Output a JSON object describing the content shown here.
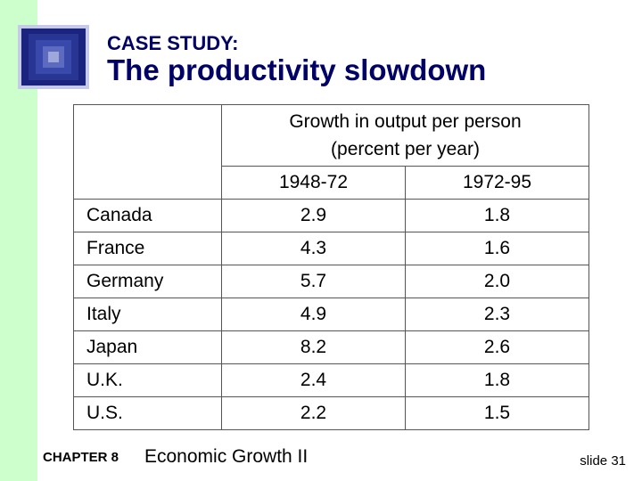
{
  "slide": {
    "kicker": "CASE STUDY:",
    "title": "The productivity slowdown",
    "logo_icon": "blue-square-tunnel-icon"
  },
  "table": {
    "group_header_line1": "Growth in output per person",
    "group_header_line2": "(percent per year)",
    "period_headers": [
      "1948-72",
      "1972-95"
    ],
    "rows": [
      {
        "country": "Canada",
        "p1": "2.9",
        "p2": "1.8"
      },
      {
        "country": "France",
        "p1": "4.3",
        "p2": "1.6"
      },
      {
        "country": "Germany",
        "p1": "5.7",
        "p2": "2.0"
      },
      {
        "country": "Italy",
        "p1": "4.9",
        "p2": "2.3"
      },
      {
        "country": "Japan",
        "p1": "8.2",
        "p2": "2.6"
      },
      {
        "country": "U.K.",
        "p1": "2.4",
        "p2": "1.8"
      },
      {
        "country": "U.S.",
        "p1": "2.2",
        "p2": "1.5"
      }
    ]
  },
  "footer": {
    "chapter": "CHAPTER 8",
    "chapter_title": "Economic Growth II",
    "slide_number": "slide 31"
  },
  "colors": {
    "title": "#000066",
    "left_bar": "#ccffcc",
    "logo_blue": "#1a237e"
  }
}
